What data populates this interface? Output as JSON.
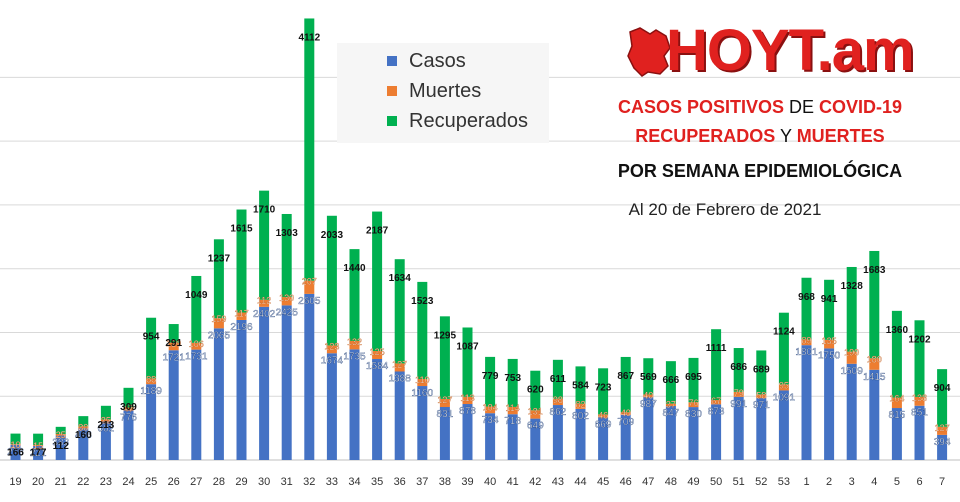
{
  "brand": {
    "logo_text": "HOYT.am"
  },
  "headline": {
    "line1": {
      "a": "CASOS POSITIVOS",
      "b": " DE ",
      "c": "COVID-19"
    },
    "line2": {
      "a": "RECUPERADOS",
      "b": " Y ",
      "c": "MUERTES"
    },
    "line3": "POR SEMANA EPIDEMIOLÓGICA",
    "date": "Al 20 de Febrero de 2021"
  },
  "colors": {
    "casos": "#4472c4",
    "muertes": "#ed7d31",
    "recuperados": "#00b050",
    "grid": "#d9d9d9"
  },
  "chart_data": {
    "type": "bar",
    "stacked": true,
    "title": "",
    "xlabel": "",
    "ylabel": "",
    "ylim": [
      0,
      6900
    ],
    "grid": true,
    "legend_position": "top-center",
    "categories": [
      "19",
      "20",
      "21",
      "22",
      "23",
      "24",
      "25",
      "26",
      "27",
      "28",
      "29",
      "30",
      "31",
      "32",
      "33",
      "34",
      "35",
      "36",
      "37",
      "38",
      "39",
      "40",
      "41",
      "42",
      "43",
      "44",
      "45",
      "46",
      "47",
      "48",
      "49",
      "50",
      "51",
      "52",
      "53",
      "1",
      "2",
      "3",
      "4",
      "5",
      "6",
      "7"
    ],
    "series": [
      {
        "name": "Casos",
        "values": [
          238,
          221,
          383,
          498,
          602,
          776,
          1189,
          1721,
          1731,
          2065,
          2196,
          2402,
          2425,
          2605,
          1674,
          1735,
          1584,
          1388,
          1160,
          831,
          878,
          734,
          718,
          649,
          862,
          802,
          669,
          709,
          987,
          847,
          830,
          873,
          991,
          971,
          1091,
          1801,
          1750,
          1509,
          1415,
          815,
          851,
          394
        ]
      },
      {
        "name": "Muertes",
        "values": [
          10,
          15,
          25,
          30,
          35,
          47,
          88,
          120,
          106,
          159,
          117,
          112,
          130,
          207,
          123,
          132,
          125,
          127,
          110,
          127,
          113,
          104,
          114,
          131,
          98,
          82,
          46,
          40,
          40,
          37,
          76,
          67,
          79,
          58,
          95,
          89,
          135,
          190,
          180,
          164,
          138,
          127
        ]
      },
      {
        "name": "Recuperados",
        "values": [
          166,
          177,
          112,
          160,
          213,
          309,
          954,
          291,
          1049,
          1237,
          1615,
          1710,
          1303,
          4112,
          2033,
          1440,
          2187,
          1634,
          1523,
          1295,
          1087,
          779,
          753,
          620,
          611,
          584,
          723,
          867,
          569,
          666,
          695,
          1111,
          686,
          689,
          1124,
          968,
          941,
          1328,
          1683,
          1360,
          1202,
          904
        ]
      }
    ],
    "data_labels": {
      "casos": [
        "238",
        "221",
        "383",
        "498",
        "602",
        "776",
        "1189",
        "1721",
        "1731",
        "2065",
        "2196",
        "2402",
        "2425",
        "2605",
        "1674",
        "1735",
        "1584",
        "1388",
        "1160",
        "831",
        "878",
        "734",
        "718",
        "649",
        "862",
        "802",
        "669",
        "709",
        "987",
        "847",
        "830",
        "873",
        "991",
        "971",
        "1091",
        "1801",
        "1750",
        "1509",
        "1415",
        "815",
        "851",
        "394"
      ],
      "muertes": [
        "10",
        "15",
        "25",
        "30",
        "35",
        "47",
        "88",
        "120",
        "106",
        "159",
        "117",
        "112",
        "130",
        "207",
        "123",
        "132",
        "125",
        "127",
        "110",
        "127",
        "113",
        "104",
        "114",
        "131",
        "98",
        "82",
        "46",
        "40",
        "40",
        "37",
        "76",
        "67",
        "79",
        "58",
        "95",
        "89",
        "135",
        "190",
        "180",
        "164",
        "138",
        "127"
      ],
      "recuperados": [
        "166",
        "177",
        "112",
        "160",
        "213",
        "309",
        "954",
        "291",
        "1049",
        "1237",
        "1615",
        "1710",
        "1303",
        "4112",
        "2033",
        "1440",
        "2187",
        "1634",
        "1523",
        "1295",
        "1087",
        "779",
        "753",
        "620",
        "611",
        "584",
        "723",
        "867",
        "569",
        "666",
        "695",
        "1111",
        "686",
        "689",
        "1124",
        "968",
        "941",
        "1328",
        "1683",
        "1360",
        "1202",
        "904"
      ]
    }
  }
}
